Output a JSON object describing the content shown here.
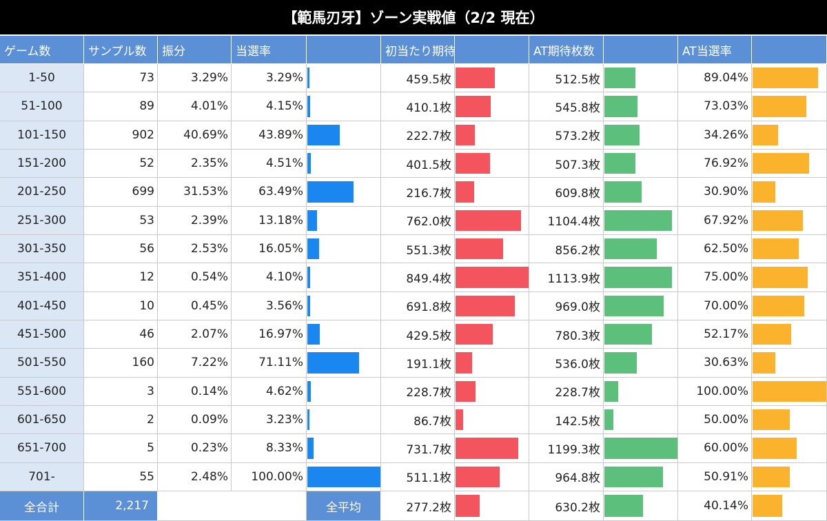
{
  "title": "【範馬刃牙】ゾーン実戦値（2/2 現在）",
  "headers": [
    "ゲーム数",
    "サンプル数",
    "振分",
    "当選率",
    "",
    "初当たり期待枚数",
    "",
    "AT期待枚数",
    "",
    "AT当選率",
    ""
  ],
  "colors": {
    "win_rate_bar": "#1a87f0",
    "first_hit_bar": "#f4545e",
    "at_exp_bar": "#5cbf7c",
    "at_rate_bar": "#fbb32e",
    "header_bg": "#5b8fd6",
    "zone_bg": "#dbe7f5"
  },
  "chart_data": {
    "type": "table",
    "columns": [
      "ゲーム数",
      "サンプル数",
      "振分",
      "当選率",
      "初当たり期待枚数",
      "AT期待枚数",
      "AT当選率"
    ],
    "rows": [
      {
        "zone": "1-50",
        "samples": "73",
        "dist": "3.29%",
        "win_rate": "3.29%",
        "first_hit": "459.5枚",
        "at_exp": "512.5枚",
        "at_rate": "89.04%"
      },
      {
        "zone": "51-100",
        "samples": "89",
        "dist": "4.01%",
        "win_rate": "4.15%",
        "first_hit": "410.1枚",
        "at_exp": "545.8枚",
        "at_rate": "73.03%"
      },
      {
        "zone": "101-150",
        "samples": "902",
        "dist": "40.69%",
        "win_rate": "43.89%",
        "first_hit": "222.7枚",
        "at_exp": "573.2枚",
        "at_rate": "34.26%"
      },
      {
        "zone": "151-200",
        "samples": "52",
        "dist": "2.35%",
        "win_rate": "4.51%",
        "first_hit": "401.5枚",
        "at_exp": "507.3枚",
        "at_rate": "76.92%"
      },
      {
        "zone": "201-250",
        "samples": "699",
        "dist": "31.53%",
        "win_rate": "63.49%",
        "first_hit": "216.7枚",
        "at_exp": "609.8枚",
        "at_rate": "30.90%"
      },
      {
        "zone": "251-300",
        "samples": "53",
        "dist": "2.39%",
        "win_rate": "13.18%",
        "first_hit": "762.0枚",
        "at_exp": "1104.4枚",
        "at_rate": "67.92%"
      },
      {
        "zone": "301-350",
        "samples": "56",
        "dist": "2.53%",
        "win_rate": "16.05%",
        "first_hit": "551.3枚",
        "at_exp": "856.2枚",
        "at_rate": "62.50%"
      },
      {
        "zone": "351-400",
        "samples": "12",
        "dist": "0.54%",
        "win_rate": "4.10%",
        "first_hit": "849.4枚",
        "at_exp": "1113.9枚",
        "at_rate": "75.00%"
      },
      {
        "zone": "401-450",
        "samples": "10",
        "dist": "0.45%",
        "win_rate": "3.56%",
        "first_hit": "691.8枚",
        "at_exp": "969.0枚",
        "at_rate": "70.00%"
      },
      {
        "zone": "451-500",
        "samples": "46",
        "dist": "2.07%",
        "win_rate": "16.97%",
        "first_hit": "429.5枚",
        "at_exp": "780.3枚",
        "at_rate": "52.17%"
      },
      {
        "zone": "501-550",
        "samples": "160",
        "dist": "7.22%",
        "win_rate": "71.11%",
        "first_hit": "191.1枚",
        "at_exp": "536.0枚",
        "at_rate": "30.63%"
      },
      {
        "zone": "551-600",
        "samples": "3",
        "dist": "0.14%",
        "win_rate": "4.62%",
        "first_hit": "228.7枚",
        "at_exp": "228.7枚",
        "at_rate": "100.00%"
      },
      {
        "zone": "601-650",
        "samples": "2",
        "dist": "0.09%",
        "win_rate": "3.23%",
        "first_hit": "86.7枚",
        "at_exp": "142.5枚",
        "at_rate": "50.00%"
      },
      {
        "zone": "651-700",
        "samples": "5",
        "dist": "0.23%",
        "win_rate": "8.33%",
        "first_hit": "731.7枚",
        "at_exp": "1199.3枚",
        "at_rate": "60.00%"
      },
      {
        "zone": "701-",
        "samples": "55",
        "dist": "2.48%",
        "win_rate": "100.00%",
        "first_hit": "511.1枚",
        "at_exp": "964.8枚",
        "at_rate": "50.91%"
      }
    ],
    "footer": {
      "total_label": "全合計",
      "total_samples": "2,217",
      "avg_label": "全平均",
      "first_hit": "277.2枚",
      "at_exp": "630.2枚",
      "at_rate": "40.14%"
    },
    "bar_max": {
      "win_rate": 100,
      "first_hit": 849.4,
      "at_exp": 1199.3,
      "at_rate": 100
    }
  }
}
